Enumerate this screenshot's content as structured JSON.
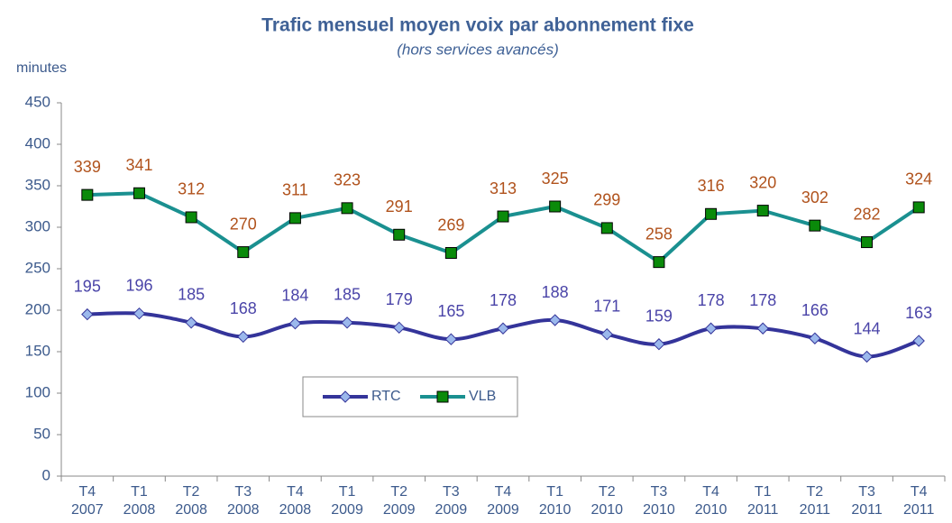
{
  "chart_data": {
    "type": "line",
    "title": "Trafic mensuel moyen voix par abonnement fixe",
    "subtitle": "(hors services avancés)",
    "y_label": "minutes",
    "categories": [
      [
        "T4",
        "2007"
      ],
      [
        "T1",
        "2008"
      ],
      [
        "T2",
        "2008"
      ],
      [
        "T3",
        "2008"
      ],
      [
        "T4",
        "2008"
      ],
      [
        "T1",
        "2009"
      ],
      [
        "T2",
        "2009"
      ],
      [
        "T3",
        "2009"
      ],
      [
        "T4",
        "2009"
      ],
      [
        "T1",
        "2010"
      ],
      [
        "T2",
        "2010"
      ],
      [
        "T3",
        "2010"
      ],
      [
        "T4",
        "2010"
      ],
      [
        "T1",
        "2011"
      ],
      [
        "T2",
        "2011"
      ],
      [
        "T3",
        "2011"
      ],
      [
        "T4",
        "2011"
      ]
    ],
    "series": [
      {
        "name": "RTC",
        "color": "#34349a",
        "marker_color": "#9bb8ec",
        "label_color": "#4a44a8",
        "smooth": true,
        "values": [
          195,
          196,
          185,
          168,
          184,
          185,
          179,
          165,
          178,
          188,
          171,
          159,
          178,
          178,
          166,
          144,
          163
        ]
      },
      {
        "name": "VLB",
        "color": "#1a9090",
        "marker_color": "#0a8a0a",
        "label_color": "#b0521c",
        "smooth": false,
        "values": [
          339,
          341,
          312,
          270,
          311,
          323,
          291,
          269,
          313,
          325,
          299,
          258,
          316,
          320,
          302,
          282,
          324
        ]
      }
    ],
    "ylim": [
      0,
      450
    ],
    "yticks": [
      0,
      50,
      100,
      150,
      200,
      250,
      300,
      350,
      400,
      450
    ],
    "grid": false
  }
}
